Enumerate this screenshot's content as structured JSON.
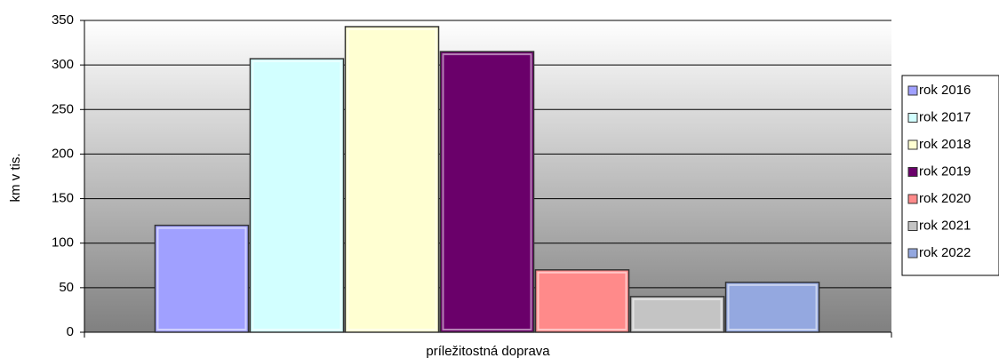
{
  "chart_data": {
    "type": "bar",
    "y_label": "km v tis.",
    "categories": [
      "príležitostná doprava"
    ],
    "series": [
      {
        "name": "rok 2016",
        "color": "#a0a0ff",
        "values": [
          120
        ]
      },
      {
        "name": "rok 2017",
        "color": "#d2ffff",
        "values": [
          307
        ]
      },
      {
        "name": "rok 2018",
        "color": "#ffffd2",
        "values": [
          343
        ]
      },
      {
        "name": "rok 2019",
        "color": "#6a006a",
        "values": [
          315
        ]
      },
      {
        "name": "rok 2020",
        "color": "#ff8a8a",
        "values": [
          70
        ]
      },
      {
        "name": "rok 2021",
        "color": "#c4c4c4",
        "values": [
          40
        ]
      },
      {
        "name": "rok 2022",
        "color": "#94a8e0",
        "values": [
          56
        ]
      }
    ],
    "ylim": [
      0,
      350
    ],
    "yticks": [
      0,
      50,
      100,
      150,
      200,
      250,
      300,
      350
    ],
    "grid": true,
    "legend": "right"
  }
}
